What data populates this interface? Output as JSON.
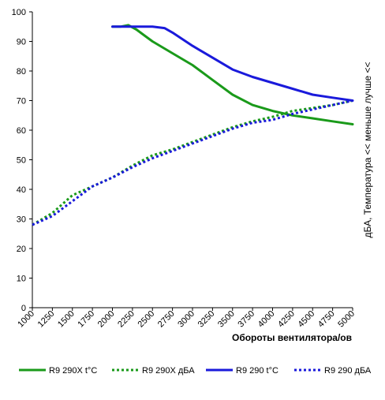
{
  "chart_data": {
    "type": "line",
    "xlabel": "Обороты вентилятора/ов",
    "ylabel_right": "дБА, Температура << меньше лучше <<",
    "xlim": [
      1000,
      5000
    ],
    "ylim": [
      0,
      100
    ],
    "x_ticks": [
      1000,
      1250,
      1500,
      1750,
      2000,
      2250,
      2500,
      2750,
      3000,
      3250,
      3500,
      3750,
      4000,
      4250,
      4500,
      4750,
      5000
    ],
    "y_ticks": [
      0,
      10,
      20,
      30,
      40,
      50,
      60,
      70,
      80,
      90,
      100
    ],
    "grid": false,
    "legend_position": "bottom",
    "series": [
      {
        "name": "R9 290X t°C",
        "color": "#1a9a1a",
        "style": "solid",
        "x": [
          2000,
          2100,
          2200,
          2300,
          2400,
          2500,
          2750,
          3000,
          3250,
          3500,
          3750,
          4000,
          4250,
          4500,
          4750,
          5000
        ],
        "y": [
          95,
          95,
          95.5,
          94,
          92,
          90,
          86,
          82,
          77,
          72,
          68.5,
          66.5,
          65,
          64,
          63,
          62
        ]
      },
      {
        "name": "R9 290X дБА",
        "color": "#1a9a1a",
        "style": "dotted",
        "x": [
          1000,
          1250,
          1500,
          1750,
          2000,
          2250,
          2500,
          2750,
          3000,
          3250,
          3500,
          3750,
          4000,
          4250,
          4500,
          4750,
          5000
        ],
        "y": [
          28,
          32,
          38,
          41,
          44,
          48,
          51.5,
          53.5,
          56,
          58.5,
          61,
          63,
          64.5,
          66.5,
          67.5,
          68.5,
          70
        ]
      },
      {
        "name": "R9 290 t°C",
        "color": "#1a1adb",
        "style": "solid",
        "x": [
          2000,
          2250,
          2500,
          2650,
          2750,
          3000,
          3250,
          3500,
          3750,
          4000,
          4250,
          4500,
          4750,
          5000
        ],
        "y": [
          95,
          95,
          95,
          94.5,
          93,
          88.5,
          84.5,
          80.5,
          78,
          76,
          74,
          72,
          71,
          70
        ]
      },
      {
        "name": "R9 290 дБА",
        "color": "#1a1adb",
        "style": "dotted",
        "x": [
          1000,
          1250,
          1500,
          1750,
          2000,
          2250,
          2500,
          2750,
          3000,
          3250,
          3500,
          3750,
          4000,
          4250,
          4500,
          4750,
          5000
        ],
        "y": [
          28,
          31,
          36,
          41,
          44,
          47.5,
          50.5,
          53,
          55.5,
          58,
          60.5,
          62.5,
          63.5,
          65.5,
          67,
          68.5,
          70
        ]
      }
    ]
  }
}
